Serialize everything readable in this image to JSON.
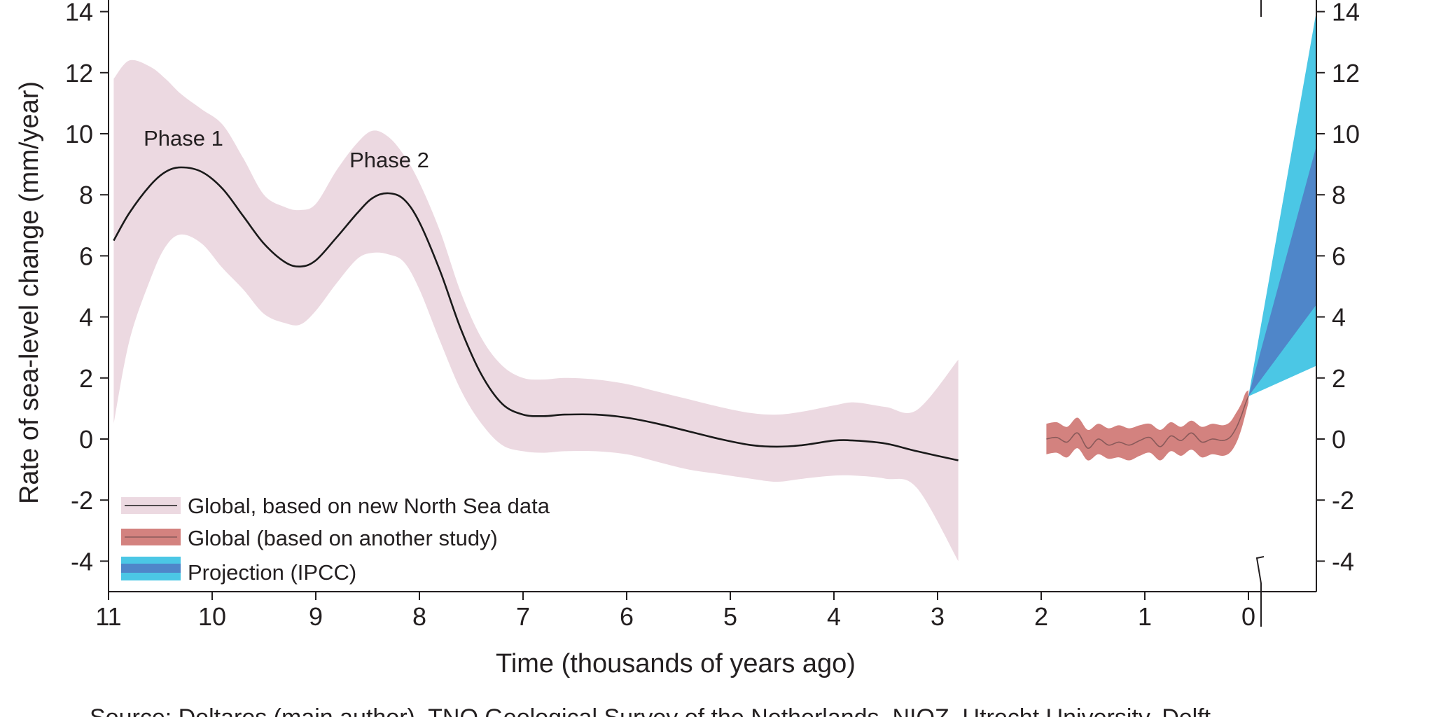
{
  "chart_data": {
    "type": "line",
    "title": "",
    "xlabel": "Time (thousands of years ago)",
    "ylabel": "Rate of sea-level change (mm/year)",
    "xlim": [
      11,
      0
    ],
    "ylim": [
      -5,
      14
    ],
    "x_ticks": [
      "11",
      "10",
      "9",
      "8",
      "7",
      "6",
      "5",
      "4",
      "3",
      "2",
      "1",
      "0"
    ],
    "y_ticks": [
      "14",
      "12",
      "10",
      "8",
      "6",
      "4",
      "2",
      "0",
      "-2",
      "-4"
    ],
    "annotations": [
      {
        "text": "Phase 1",
        "x": 10.25,
        "y": 9.8
      },
      {
        "text": "Phase 2",
        "x": 8.25,
        "y": 9.1
      }
    ],
    "legend_position": "bottom-left",
    "series": [
      {
        "name": "Global, based on new North Sea data",
        "color": "#1a1a1a",
        "band_color": "#ecd9e1",
        "x": [
          10.95,
          10.8,
          10.6,
          10.45,
          10.3,
          10.1,
          9.9,
          9.7,
          9.5,
          9.3,
          9.15,
          9.0,
          8.8,
          8.6,
          8.45,
          8.3,
          8.15,
          8.0,
          7.8,
          7.6,
          7.4,
          7.2,
          7.0,
          6.8,
          6.6,
          6.3,
          6.0,
          5.7,
          5.4,
          5.1,
          4.8,
          4.55,
          4.3,
          4.0,
          3.8,
          3.5,
          3.2,
          2.8
        ],
        "values": [
          6.5,
          7.4,
          8.3,
          8.75,
          8.9,
          8.75,
          8.2,
          7.3,
          6.4,
          5.8,
          5.65,
          5.85,
          6.6,
          7.4,
          7.9,
          8.05,
          7.85,
          7.1,
          5.5,
          3.6,
          2.1,
          1.15,
          0.8,
          0.75,
          0.8,
          0.8,
          0.7,
          0.5,
          0.25,
          0.0,
          -0.2,
          -0.25,
          -0.2,
          -0.05,
          -0.05,
          -0.15,
          -0.4,
          -0.7
        ],
        "upper": [
          11.8,
          12.4,
          12.2,
          11.8,
          11.3,
          10.8,
          10.3,
          9.2,
          8.0,
          7.6,
          7.5,
          7.7,
          8.8,
          9.7,
          10.1,
          9.9,
          9.3,
          8.4,
          6.8,
          4.8,
          3.3,
          2.4,
          2.0,
          1.95,
          2.0,
          1.95,
          1.8,
          1.55,
          1.3,
          1.05,
          0.85,
          0.8,
          0.9,
          1.1,
          1.2,
          1.05,
          0.95,
          2.6
        ],
        "lower": [
          0.5,
          3.2,
          5.2,
          6.3,
          6.7,
          6.4,
          5.6,
          4.9,
          4.1,
          3.8,
          3.75,
          4.2,
          5.1,
          5.9,
          6.1,
          6.05,
          5.8,
          4.9,
          3.2,
          1.6,
          0.5,
          -0.2,
          -0.4,
          -0.45,
          -0.4,
          -0.4,
          -0.5,
          -0.75,
          -1.0,
          -1.15,
          -1.3,
          -1.4,
          -1.3,
          -1.2,
          -1.2,
          -1.3,
          -1.6,
          -4.0
        ]
      },
      {
        "name": "Global (based on another study)",
        "color": "#8a5a5a",
        "band_color": "#d3827f",
        "x": [
          1.95,
          1.85,
          1.75,
          1.65,
          1.55,
          1.45,
          1.35,
          1.25,
          1.15,
          1.05,
          0.95,
          0.85,
          0.75,
          0.65,
          0.55,
          0.45,
          0.35,
          0.25,
          0.18,
          0.12,
          0.07,
          0.03,
          0.0
        ],
        "values": [
          0.0,
          0.05,
          -0.1,
          0.2,
          -0.3,
          0.0,
          -0.2,
          -0.1,
          -0.2,
          -0.05,
          0.05,
          -0.25,
          0.1,
          -0.05,
          0.2,
          -0.1,
          0.0,
          -0.05,
          0.05,
          0.35,
          0.75,
          1.15,
          1.4
        ],
        "upper": [
          0.5,
          0.55,
          0.4,
          0.7,
          0.3,
          0.5,
          0.35,
          0.45,
          0.35,
          0.45,
          0.5,
          0.3,
          0.55,
          0.4,
          0.6,
          0.4,
          0.5,
          0.45,
          0.55,
          0.85,
          1.15,
          1.5,
          1.6
        ],
        "lower": [
          -0.5,
          -0.45,
          -0.6,
          -0.3,
          -0.7,
          -0.5,
          -0.65,
          -0.6,
          -0.7,
          -0.55,
          -0.45,
          -0.7,
          -0.4,
          -0.55,
          -0.35,
          -0.6,
          -0.5,
          -0.55,
          -0.45,
          -0.15,
          0.3,
          0.8,
          1.2
        ]
      },
      {
        "name": "Projection (IPCC)",
        "color_outer": "#4bc7e5",
        "color_inner": "#4f86c9",
        "x_start": 0.0,
        "y_start": 1.4,
        "end_outer_high": 14.0,
        "end_outer_low": 2.4,
        "end_inner_high": 9.6,
        "end_inner_low": 4.4
      }
    ]
  },
  "source_line": "Source: Deltares (main author), TNO Geological Survey of the Netherlands, NIOZ, Utrecht University, Delft"
}
